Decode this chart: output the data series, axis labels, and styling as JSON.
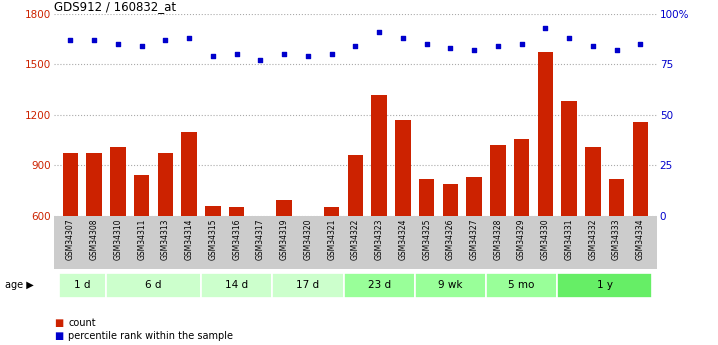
{
  "title": "GDS912 / 160832_at",
  "samples": [
    "GSM34307",
    "GSM34308",
    "GSM34310",
    "GSM34311",
    "GSM34313",
    "GSM34314",
    "GSM34315",
    "GSM34316",
    "GSM34317",
    "GSM34319",
    "GSM34320",
    "GSM34321",
    "GSM34322",
    "GSM34323",
    "GSM34324",
    "GSM34325",
    "GSM34326",
    "GSM34327",
    "GSM34328",
    "GSM34329",
    "GSM34330",
    "GSM34331",
    "GSM34332",
    "GSM34333",
    "GSM34334"
  ],
  "counts": [
    975,
    970,
    1010,
    840,
    970,
    1100,
    660,
    650,
    595,
    690,
    600,
    650,
    960,
    1320,
    1170,
    820,
    790,
    830,
    1020,
    1055,
    1570,
    1280,
    1010,
    820,
    1155
  ],
  "percentile_ranks": [
    87,
    87,
    85,
    84,
    87,
    88,
    79,
    80,
    77,
    80,
    79,
    80,
    84,
    91,
    88,
    85,
    83,
    82,
    84,
    85,
    93,
    88,
    84,
    82,
    85
  ],
  "groups": [
    {
      "label": "1 d",
      "count": 2,
      "color": "#ccffcc"
    },
    {
      "label": "6 d",
      "count": 4,
      "color": "#ccffcc"
    },
    {
      "label": "14 d",
      "count": 3,
      "color": "#ccffcc"
    },
    {
      "label": "17 d",
      "count": 3,
      "color": "#ccffcc"
    },
    {
      "label": "23 d",
      "count": 3,
      "color": "#99ff99"
    },
    {
      "label": "9 wk",
      "count": 3,
      "color": "#99ff99"
    },
    {
      "label": "5 mo",
      "count": 3,
      "color": "#99ff99"
    },
    {
      "label": "1 y",
      "count": 4,
      "color": "#66ee66"
    }
  ],
  "ylim_left": [
    600,
    1800
  ],
  "ylim_right": [
    0,
    100
  ],
  "yticks_left": [
    600,
    900,
    1200,
    1500,
    1800
  ],
  "yticks_right": [
    0,
    25,
    50,
    75,
    100
  ],
  "bar_color": "#cc2200",
  "dot_color": "#0000cc",
  "background_color": "#ffffff",
  "grid_color": "#aaaaaa",
  "tick_label_color_left": "#cc2200",
  "tick_label_color_right": "#0000cc"
}
